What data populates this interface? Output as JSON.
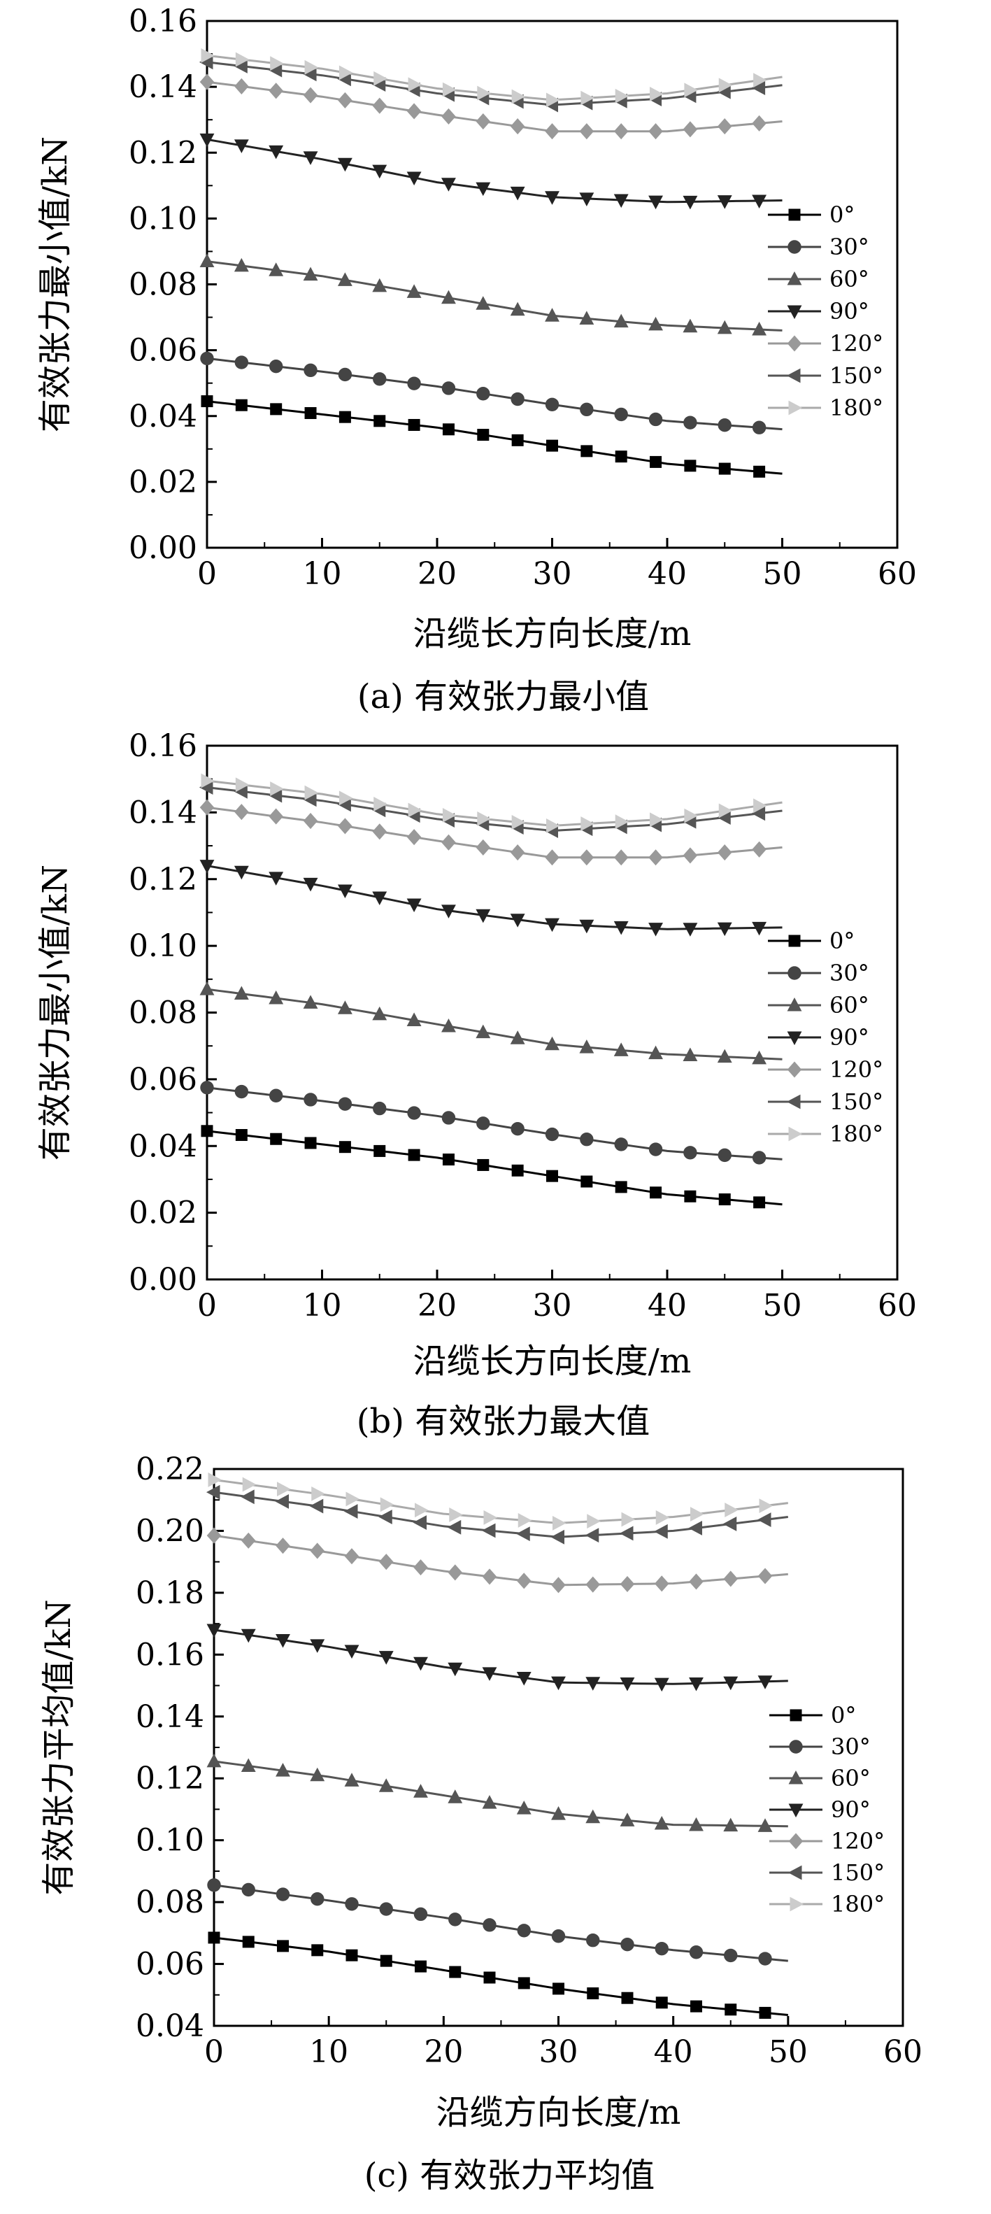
{
  "chart_data": [
    {
      "type": "line",
      "panel": "a",
      "caption": "(a) 有效张力最小值",
      "xlabel": "沿缆长方向长度/m",
      "ylabel": "有效张力最小值/kN",
      "xlim": [
        0,
        60
      ],
      "ylim": [
        0,
        0.16
      ],
      "xticks": [
        "0",
        "10",
        "20",
        "30",
        "40",
        "50",
        "60"
      ],
      "yticks": [
        "0.00",
        "0.02",
        "0.04",
        "0.06",
        "0.08",
        "0.10",
        "0.12",
        "0.14",
        "0.16"
      ],
      "grid": false,
      "legend_position": "right",
      "series": [
        {
          "name": "0°",
          "marker": "square",
          "color": "#000000",
          "curve": [
            [
              0,
              0.0445
            ],
            [
              10,
              0.0405
            ],
            [
              20,
              0.0365
            ],
            [
              30,
              0.031
            ],
            [
              40,
              0.0255
            ],
            [
              50,
              0.0225
            ]
          ]
        },
        {
          "name": "30°",
          "marker": "circle",
          "color": "#444444",
          "curve": [
            [
              0,
              0.0575
            ],
            [
              10,
              0.0535
            ],
            [
              20,
              0.049
            ],
            [
              30,
              0.0435
            ],
            [
              40,
              0.0385
            ],
            [
              50,
              0.036
            ]
          ]
        },
        {
          "name": "60°",
          "marker": "triangle-up",
          "color": "#555555",
          "curve": [
            [
              0,
              0.087
            ],
            [
              10,
              0.0825
            ],
            [
              20,
              0.0765
            ],
            [
              30,
              0.0705
            ],
            [
              40,
              0.0675
            ],
            [
              50,
              0.066
            ]
          ]
        },
        {
          "name": "90°",
          "marker": "triangle-down",
          "color": "#222222",
          "curve": [
            [
              0,
              0.124
            ],
            [
              10,
              0.118
            ],
            [
              20,
              0.111
            ],
            [
              30,
              0.1065
            ],
            [
              40,
              0.105
            ],
            [
              50,
              0.1055
            ]
          ]
        },
        {
          "name": "120°",
          "marker": "diamond",
          "color": "#999999",
          "curve": [
            [
              0,
              0.1415
            ],
            [
              10,
              0.137
            ],
            [
              20,
              0.1315
            ],
            [
              30,
              0.1265
            ],
            [
              40,
              0.1265
            ],
            [
              50,
              0.1295
            ]
          ]
        },
        {
          "name": "150°",
          "marker": "triangle-left",
          "color": "#555555",
          "curve": [
            [
              0,
              0.1475
            ],
            [
              10,
              0.1435
            ],
            [
              20,
              0.138
            ],
            [
              30,
              0.1345
            ],
            [
              40,
              0.1365
            ],
            [
              50,
              0.1405
            ]
          ]
        },
        {
          "name": "180°",
          "marker": "triangle-right",
          "color": "#cccccc",
          "curve": [
            [
              0,
              0.1495
            ],
            [
              10,
              0.1455
            ],
            [
              20,
              0.1395
            ],
            [
              30,
              0.136
            ],
            [
              40,
              0.138
            ],
            [
              50,
              0.143
            ]
          ]
        }
      ]
    },
    {
      "type": "line",
      "panel": "b",
      "caption": "(b) 有效张力最大值",
      "xlabel": "沿缆长方向长度/m",
      "ylabel": "有效张力最小值/kN",
      "xlim": [
        0,
        60
      ],
      "ylim": [
        0,
        0.16
      ],
      "xticks": [
        "0",
        "10",
        "20",
        "30",
        "40",
        "50",
        "60"
      ],
      "yticks": [
        "0.00",
        "0.02",
        "0.04",
        "0.06",
        "0.08",
        "0.10",
        "0.12",
        "0.14",
        "0.16"
      ],
      "grid": false,
      "legend_position": "right",
      "series": [
        {
          "name": "0°",
          "marker": "square",
          "color": "#000000",
          "curve": [
            [
              0,
              0.0445
            ],
            [
              10,
              0.0405
            ],
            [
              20,
              0.0365
            ],
            [
              30,
              0.031
            ],
            [
              40,
              0.0255
            ],
            [
              50,
              0.0225
            ]
          ]
        },
        {
          "name": "30°",
          "marker": "circle",
          "color": "#444444",
          "curve": [
            [
              0,
              0.0575
            ],
            [
              10,
              0.0535
            ],
            [
              20,
              0.049
            ],
            [
              30,
              0.0435
            ],
            [
              40,
              0.0385
            ],
            [
              50,
              0.036
            ]
          ]
        },
        {
          "name": "60°",
          "marker": "triangle-up",
          "color": "#555555",
          "curve": [
            [
              0,
              0.087
            ],
            [
              10,
              0.0825
            ],
            [
              20,
              0.0765
            ],
            [
              30,
              0.0705
            ],
            [
              40,
              0.0675
            ],
            [
              50,
              0.066
            ]
          ]
        },
        {
          "name": "90°",
          "marker": "triangle-down",
          "color": "#222222",
          "curve": [
            [
              0,
              0.124
            ],
            [
              10,
              0.118
            ],
            [
              20,
              0.111
            ],
            [
              30,
              0.1065
            ],
            [
              40,
              0.105
            ],
            [
              50,
              0.1055
            ]
          ]
        },
        {
          "name": "120°",
          "marker": "diamond",
          "color": "#999999",
          "curve": [
            [
              0,
              0.1415
            ],
            [
              10,
              0.137
            ],
            [
              20,
              0.1315
            ],
            [
              30,
              0.1265
            ],
            [
              40,
              0.1265
            ],
            [
              50,
              0.1295
            ]
          ]
        },
        {
          "name": "150°",
          "marker": "triangle-left",
          "color": "#555555",
          "curve": [
            [
              0,
              0.1475
            ],
            [
              10,
              0.1435
            ],
            [
              20,
              0.138
            ],
            [
              30,
              0.1345
            ],
            [
              40,
              0.1365
            ],
            [
              50,
              0.1405
            ]
          ]
        },
        {
          "name": "180°",
          "marker": "triangle-right",
          "color": "#cccccc",
          "curve": [
            [
              0,
              0.1495
            ],
            [
              10,
              0.1455
            ],
            [
              20,
              0.1395
            ],
            [
              30,
              0.136
            ],
            [
              40,
              0.138
            ],
            [
              50,
              0.143
            ]
          ]
        }
      ]
    },
    {
      "type": "line",
      "panel": "c",
      "caption": "(c) 有效张力平均值",
      "xlabel": "沿缆方向长度/m",
      "ylabel": "有效张力平均值/kN",
      "xlim": [
        0,
        60
      ],
      "ylim": [
        0.04,
        0.22
      ],
      "xticks": [
        "0",
        "10",
        "20",
        "30",
        "40",
        "50",
        "60"
      ],
      "yticks": [
        "0.04",
        "0.06",
        "0.08",
        "0.10",
        "0.12",
        "0.14",
        "0.16",
        "0.18",
        "0.20",
        "0.22"
      ],
      "grid": false,
      "legend_position": "right",
      "series": [
        {
          "name": "0°",
          "marker": "square",
          "color": "#000000",
          "curve": [
            [
              0,
              0.0685
            ],
            [
              10,
              0.064
            ],
            [
              20,
              0.058
            ],
            [
              30,
              0.052
            ],
            [
              40,
              0.047
            ],
            [
              50,
              0.0435
            ]
          ]
        },
        {
          "name": "30°",
          "marker": "circle",
          "color": "#444444",
          "curve": [
            [
              0,
              0.0855
            ],
            [
              10,
              0.0805
            ],
            [
              20,
              0.075
            ],
            [
              30,
              0.069
            ],
            [
              40,
              0.0645
            ],
            [
              50,
              0.061
            ]
          ]
        },
        {
          "name": "60°",
          "marker": "triangle-up",
          "color": "#555555",
          "curve": [
            [
              0,
              0.1255
            ],
            [
              10,
              0.1205
            ],
            [
              20,
              0.1145
            ],
            [
              30,
              0.1085
            ],
            [
              40,
              0.105
            ],
            [
              50,
              0.1045
            ]
          ]
        },
        {
          "name": "90°",
          "marker": "triangle-down",
          "color": "#222222",
          "curve": [
            [
              0,
              0.168
            ],
            [
              10,
              0.1625
            ],
            [
              20,
              0.156
            ],
            [
              30,
              0.151
            ],
            [
              40,
              0.1505
            ],
            [
              50,
              0.1515
            ]
          ]
        },
        {
          "name": "120°",
          "marker": "diamond",
          "color": "#999999",
          "curve": [
            [
              0,
              0.1985
            ],
            [
              10,
              0.193
            ],
            [
              20,
              0.187
            ],
            [
              30,
              0.1825
            ],
            [
              40,
              0.183
            ],
            [
              50,
              0.186
            ]
          ]
        },
        {
          "name": "150°",
          "marker": "triangle-left",
          "color": "#555555",
          "curve": [
            [
              0,
              0.2125
            ],
            [
              10,
              0.2075
            ],
            [
              20,
              0.2015
            ],
            [
              30,
              0.198
            ],
            [
              40,
              0.2
            ],
            [
              50,
              0.2045
            ]
          ]
        },
        {
          "name": "180°",
          "marker": "triangle-right",
          "color": "#cccccc",
          "curve": [
            [
              0,
              0.2165
            ],
            [
              10,
              0.2115
            ],
            [
              20,
              0.2055
            ],
            [
              30,
              0.2025
            ],
            [
              40,
              0.2045
            ],
            [
              50,
              0.209
            ]
          ]
        }
      ]
    }
  ]
}
